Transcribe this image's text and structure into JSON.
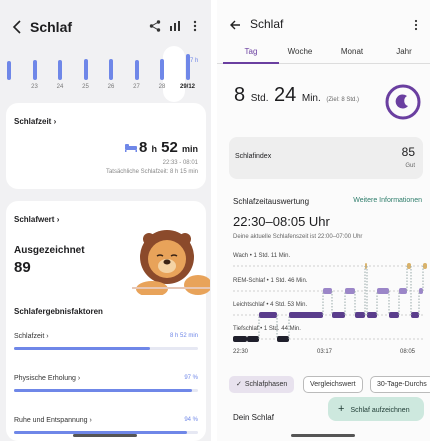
{
  "left": {
    "title": "Schlaf",
    "week_days": [
      {
        "label": "",
        "hours": 6.5
      },
      {
        "label": "23",
        "hours": 7.0
      },
      {
        "label": "24",
        "hours": 6.8
      },
      {
        "label": "25",
        "hours": 7.1
      },
      {
        "label": "26",
        "hours": 7.2
      },
      {
        "label": "27",
        "hours": 7.0
      },
      {
        "label": "28",
        "hours": 7.4
      },
      {
        "label": "29/12",
        "hours": 8.9
      }
    ],
    "hours_hint": "7 h",
    "sleep_time": {
      "title": "Schlafzeit",
      "hours": "8",
      "h_unit": "h",
      "minutes": "52",
      "min_unit": "min",
      "range": "22:33 - 08:01",
      "actual": "Tatsächliche Schlafzeit: 8 h 15 min"
    },
    "sleep_score": {
      "title": "Schlafwert",
      "rating": "Ausgezeichnet",
      "value": "89",
      "factors_title": "Schlafergebnisfaktoren",
      "factors": [
        {
          "label": "Schlafzeit",
          "value": "8 h 52 min",
          "level": 0.74
        },
        {
          "label": "Physische Erholung",
          "value": "97 %",
          "level": 0.97
        },
        {
          "label": "Ruhe und Entspannung",
          "value": "94 %",
          "level": 0.94
        }
      ]
    }
  },
  "right": {
    "title": "Schlaf",
    "tabs": [
      "Tag",
      "Woche",
      "Monat",
      "Jahr"
    ],
    "active_tab": "Tag",
    "duration": {
      "hours": "8",
      "h_unit": "Std.",
      "minutes": "24",
      "min_unit": "Min.",
      "goal": "(Ziel: 8 Std.)"
    },
    "index": {
      "label": "Schlafindex",
      "value": "85",
      "status": "Gut"
    },
    "evaluation": {
      "title": "Schlafzeitauswertung",
      "link": "Weitere Informationen",
      "range": "22:30–08:05 Uhr",
      "subtitle": "Deine aktuelle Schlafenszeit ist 22:00–07:00 Uhr"
    },
    "stages": [
      {
        "label": "Wach • 1 Std. 11 Min.",
        "color": "#d9b26a"
      },
      {
        "label": "REM-Schlaf • 1 Std. 46 Min.",
        "color": "#9b86c8"
      },
      {
        "label": "Leichtschlaf • 4 Std. 53 Min.",
        "color": "#5a3d8c"
      },
      {
        "label": "Tiefschlaf • 1 Std. 44 Min.",
        "color": "#1f1f2b"
      }
    ],
    "ticks": [
      "22:30",
      "03:17",
      "08:05"
    ],
    "chips": [
      "Schlafphasen",
      "Vergleichswert",
      "30-Tage-Durchs"
    ],
    "my_sleep": "Dein Schlaf",
    "fab": "Schlaf aufzeichnen"
  }
}
